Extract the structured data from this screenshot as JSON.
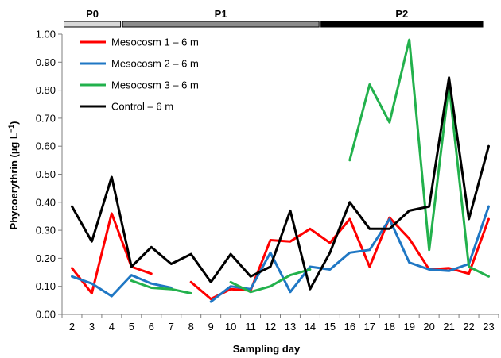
{
  "chart_data": {
    "type": "line",
    "xlabel": "Sampling day",
    "ylabel_main": "Phycoerythrin (µg L",
    "ylabel_sup": "−1",
    "ylabel_close": ")",
    "ylim": [
      0,
      1.0
    ],
    "yticks": [
      "0.00",
      "0.10",
      "0.20",
      "0.30",
      "0.40",
      "0.50",
      "0.60",
      "0.70",
      "0.80",
      "0.90",
      "1.00"
    ],
    "x": [
      2,
      3,
      4,
      5,
      6,
      7,
      8,
      9,
      10,
      11,
      12,
      13,
      14,
      15,
      16,
      17,
      18,
      19,
      20,
      21,
      22,
      23
    ],
    "grid": false,
    "legend_position": "top-left",
    "phases": [
      {
        "label": "P0",
        "start": 1.6,
        "end": 4.45,
        "color": "#d9d9d9"
      },
      {
        "label": "P1",
        "start": 4.55,
        "end": 14.45,
        "color": "#8c8c8c"
      },
      {
        "label": "P2",
        "start": 14.55,
        "end": 22.7,
        "color": "#000000"
      }
    ],
    "series": [
      {
        "name": "Mesocosm 1 – 6 m",
        "color": "#ff0000",
        "values": [
          0.165,
          0.075,
          0.36,
          0.17,
          0.145,
          null,
          0.115,
          0.055,
          0.09,
          0.085,
          0.265,
          0.26,
          0.305,
          0.255,
          0.34,
          0.17,
          0.345,
          0.27,
          0.16,
          0.165,
          0.145,
          0.34
        ]
      },
      {
        "name": "Mesocosm 2 – 6 m",
        "color": "#1f77c4",
        "values": [
          0.135,
          0.11,
          0.065,
          0.14,
          0.11,
          0.095,
          null,
          0.045,
          0.1,
          0.09,
          0.22,
          0.08,
          0.17,
          0.16,
          0.22,
          0.23,
          0.34,
          0.185,
          0.16,
          0.155,
          0.18,
          0.385
        ]
      },
      {
        "name": "Mesocosm 3 – 6 m",
        "color": "#22b14c",
        "values": [
          null,
          null,
          null,
          0.12,
          0.095,
          0.09,
          0.075,
          null,
          0.115,
          0.08,
          0.1,
          0.14,
          0.16,
          null,
          0.55,
          0.82,
          0.685,
          0.98,
          0.23,
          0.82,
          0.17,
          0.135
        ]
      },
      {
        "name": "Control – 6 m",
        "color": "#000000",
        "values": [
          0.385,
          0.26,
          0.49,
          0.17,
          0.24,
          0.18,
          0.215,
          0.115,
          0.215,
          0.135,
          0.17,
          0.37,
          0.09,
          0.22,
          0.4,
          0.305,
          0.305,
          0.37,
          0.385,
          0.845,
          0.34,
          0.6
        ]
      }
    ]
  }
}
